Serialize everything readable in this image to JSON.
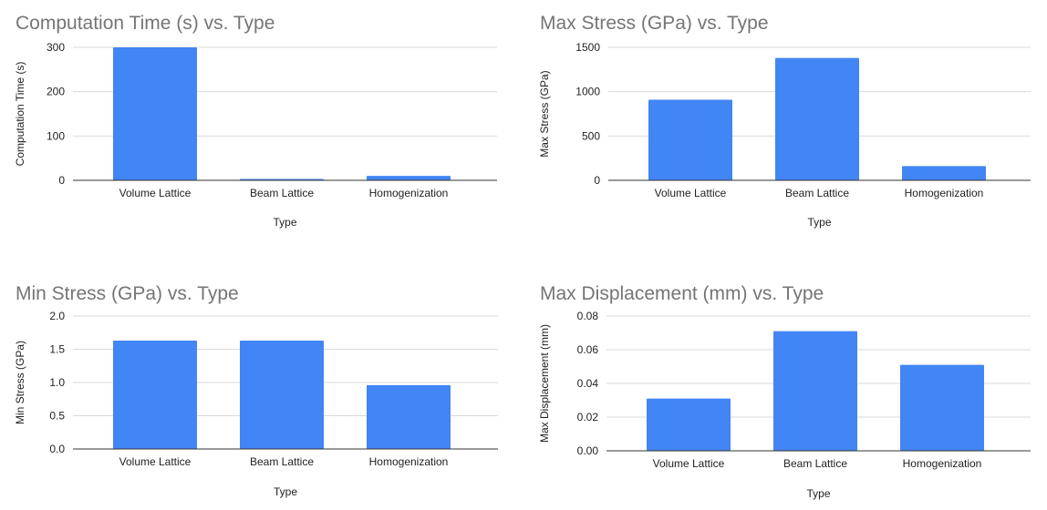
{
  "colors": {
    "bar": "#4285f4",
    "grid": "#d9d9d9",
    "axis": "#333333",
    "title": "#757575"
  },
  "chart_data": [
    {
      "type": "bar",
      "title": "Computation Time (s) vs. Type",
      "xlabel": "Type",
      "ylabel": "Computation Time (s)",
      "categories": [
        "Volume Lattice",
        "Beam Lattice",
        "Homogenization"
      ],
      "values": [
        300,
        3,
        10
      ],
      "ylim": [
        0,
        300
      ],
      "yticks": [
        0,
        100,
        200,
        300
      ],
      "yticklabels": [
        "0",
        "100",
        "200",
        "300"
      ],
      "grid": true
    },
    {
      "type": "bar",
      "title": "Max Stress (GPa) vs. Type",
      "xlabel": "Type",
      "ylabel": "Max Stress (GPa)",
      "categories": [
        "Volume Lattice",
        "Beam Lattice",
        "Homogenization"
      ],
      "values": [
        909,
        1381,
        161
      ],
      "ylim": [
        0,
        1500
      ],
      "yticks": [
        0,
        500,
        1000,
        1500
      ],
      "yticklabels": [
        "0",
        "500",
        "1000",
        "1500"
      ],
      "grid": true
    },
    {
      "type": "bar",
      "title": "Min Stress (GPa) vs. Type",
      "xlabel": "Type",
      "ylabel": "Min Stress (GPa)",
      "categories": [
        "Volume Lattice",
        "Beam Lattice",
        "Homogenization"
      ],
      "values": [
        1.63,
        1.63,
        0.96
      ],
      "ylim": [
        0,
        2.0
      ],
      "yticks": [
        0,
        0.5,
        1.0,
        1.5,
        2.0
      ],
      "yticklabels": [
        "0.0",
        "0.5",
        "1.0",
        "1.5",
        "2.0"
      ],
      "grid": true
    },
    {
      "type": "bar",
      "title": "Max Displacement (mm) vs. Type",
      "xlabel": "Type",
      "ylabel": "Max Displacement (mm)",
      "categories": [
        "Volume Lattice",
        "Beam Lattice",
        "Homogenization"
      ],
      "values": [
        0.031,
        0.071,
        0.051
      ],
      "ylim": [
        0,
        0.08
      ],
      "yticks": [
        0,
        0.02,
        0.04,
        0.06,
        0.08
      ],
      "yticklabels": [
        "0.00",
        "0.02",
        "0.04",
        "0.06",
        "0.08"
      ],
      "grid": true
    }
  ]
}
